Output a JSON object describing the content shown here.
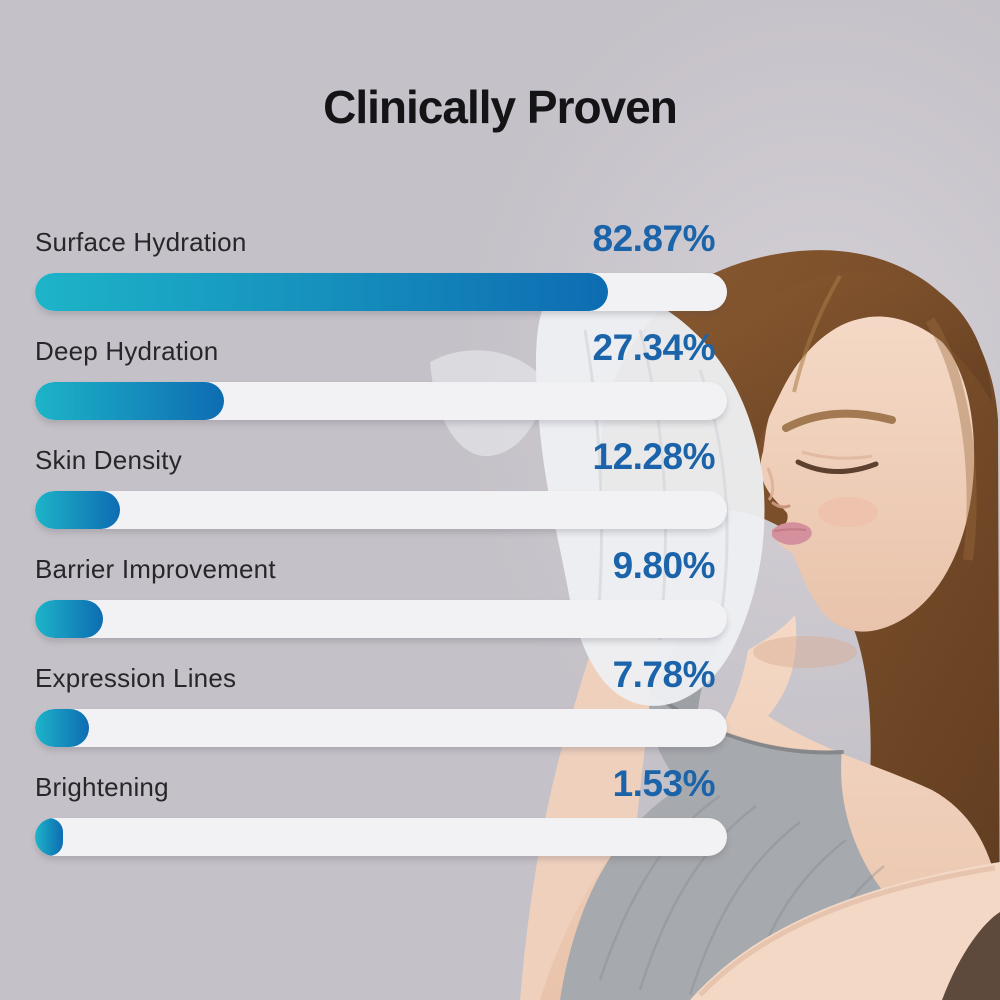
{
  "title": "Clinically Proven",
  "colors": {
    "background": "#c5c1c8",
    "title_text": "#141416",
    "label_text": "#28262b",
    "value_text": "#1c64aa",
    "bar_track": "#f2f2f4",
    "bar_gradient_start": "#1db4c8",
    "bar_gradient_end": "#0e6cb2"
  },
  "chart_data": {
    "type": "bar",
    "orientation": "horizontal",
    "title": "Clinically Proven",
    "categories": [
      "Surface Hydration",
      "Deep Hydration",
      "Skin Density",
      "Barrier Improvement",
      "Expression Lines",
      "Brightening"
    ],
    "values": [
      82.87,
      27.34,
      12.28,
      9.8,
      7.78,
      1.53
    ],
    "value_labels": [
      "82.87%",
      "27.34%",
      "12.28%",
      "9.80%",
      "7.78%",
      "1.53%"
    ],
    "xlim": [
      0,
      100
    ],
    "grid": false,
    "legend": false
  },
  "photo": {
    "alt": "Woman with closed eyes and a white sheet mask beside her face, wearing a gray ribbed tank top"
  }
}
